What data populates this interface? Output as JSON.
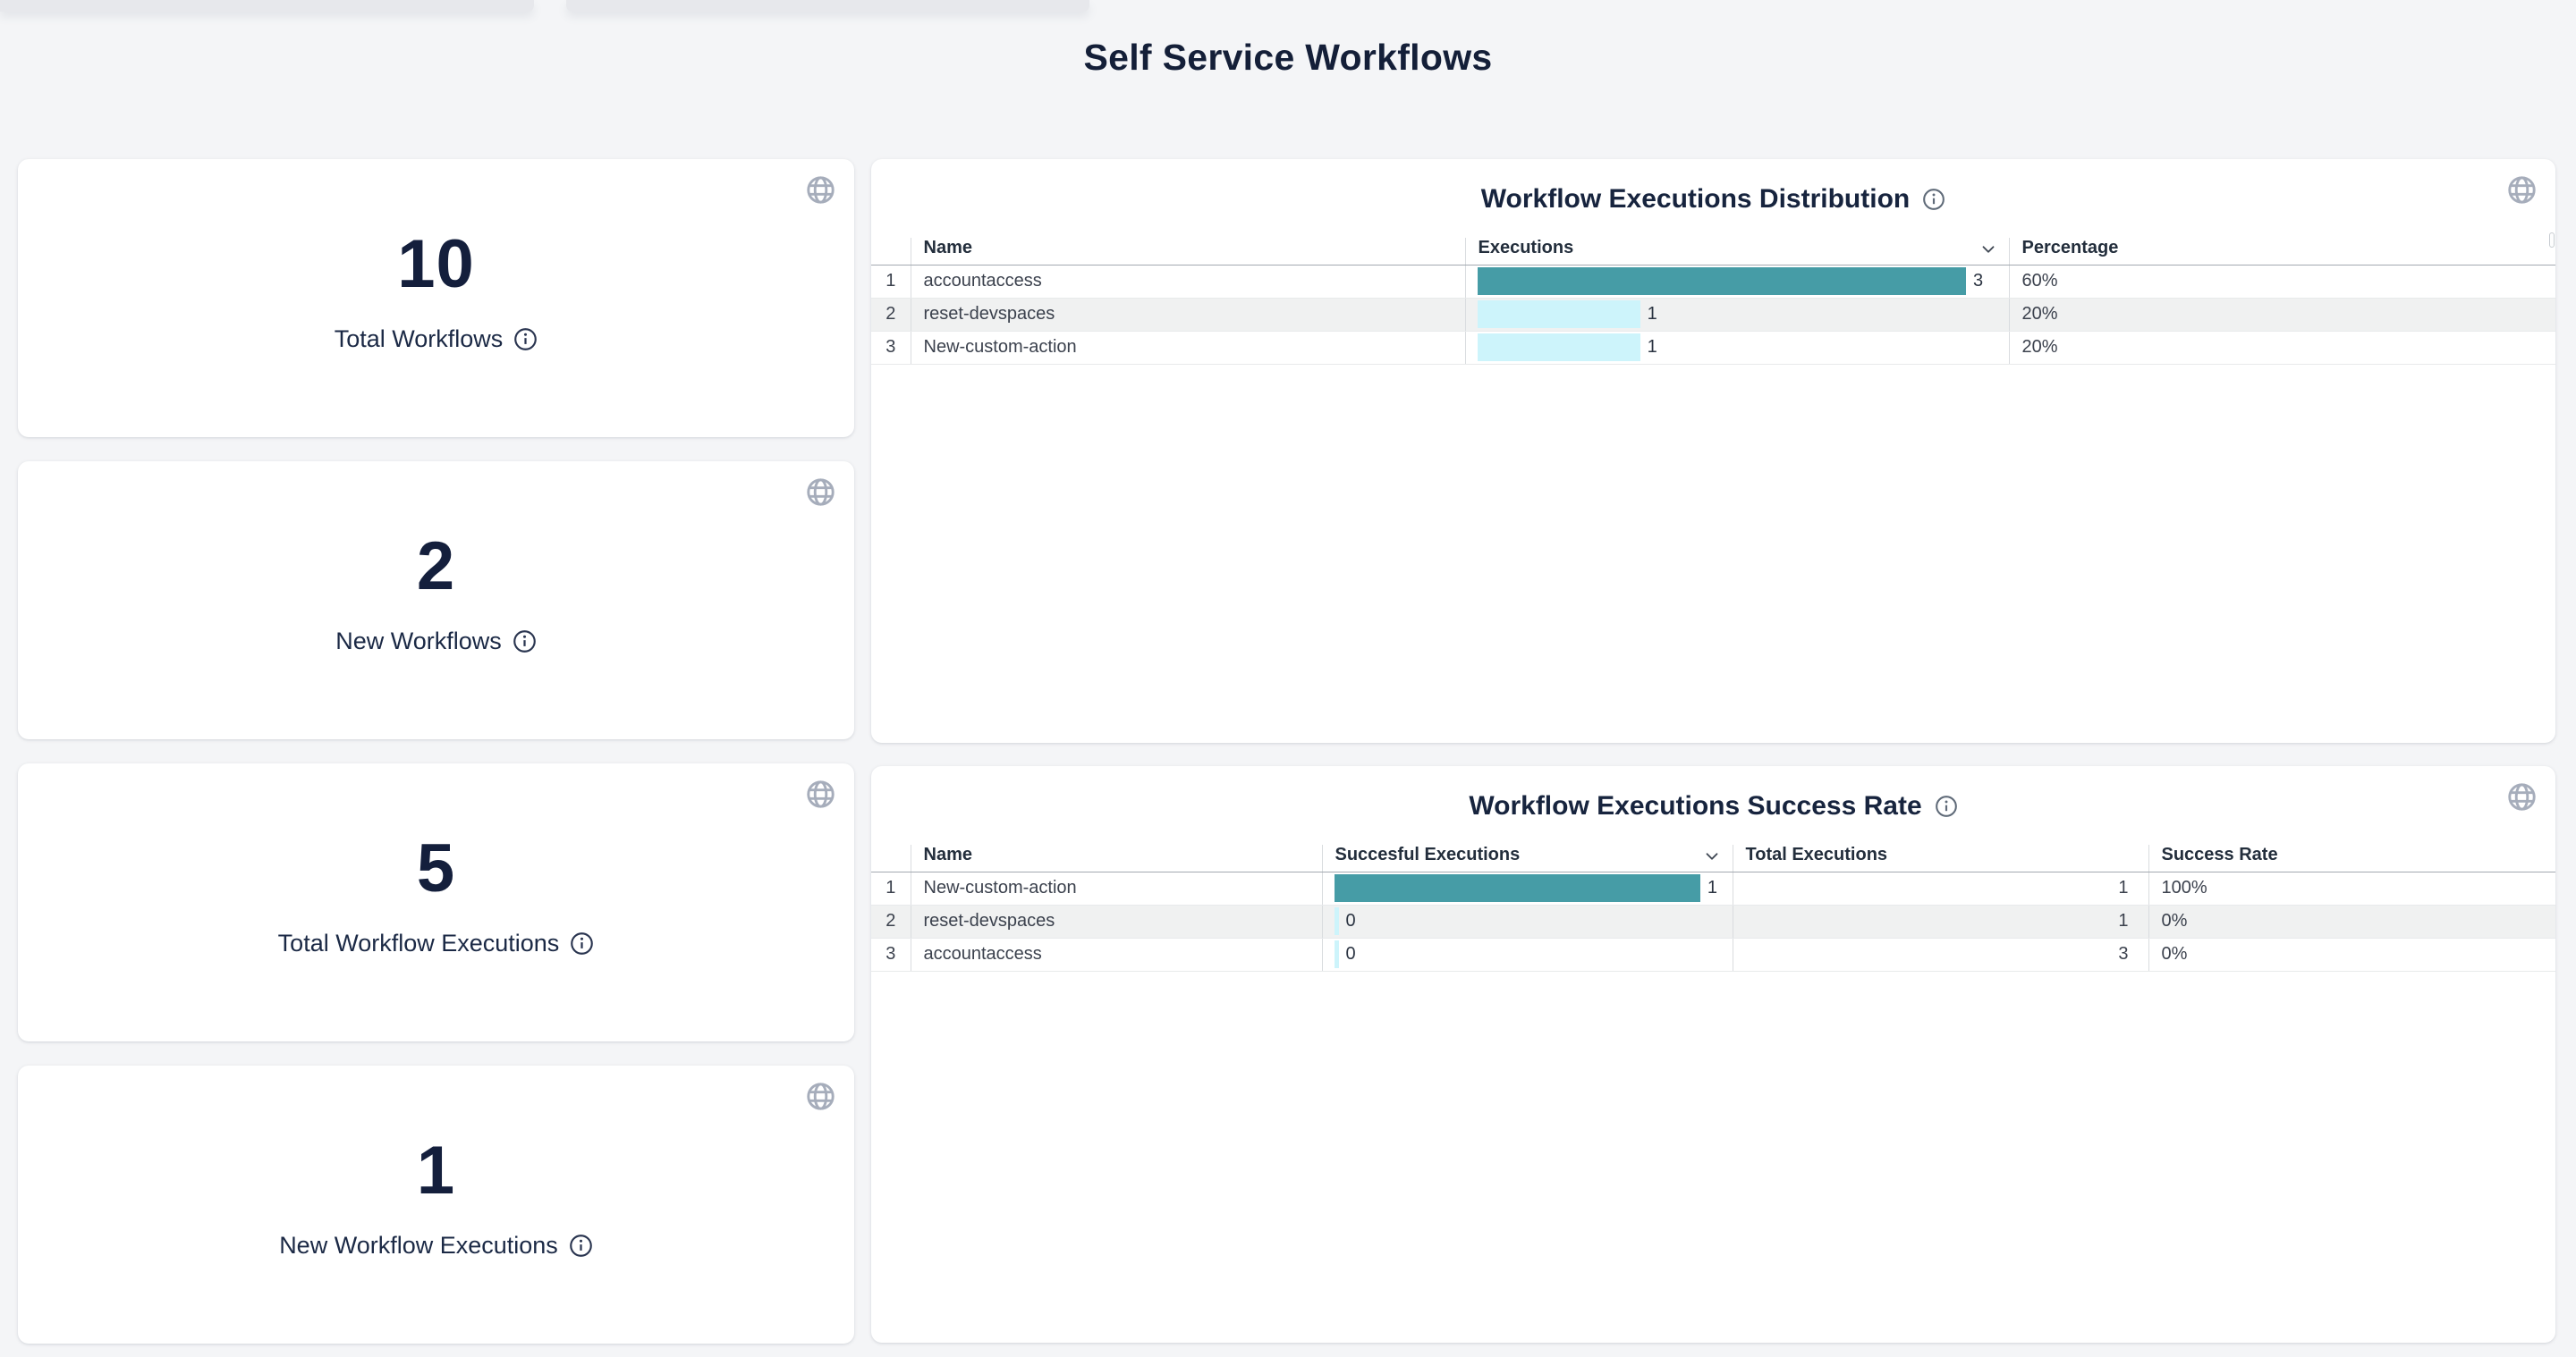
{
  "page": {
    "title": "Self Service Workflows"
  },
  "colors": {
    "bar_max": "#469CA6",
    "bar_other": "#CDF4FB",
    "accent_text": "#141F3C",
    "row_stripe": "#F0F1F1"
  },
  "stat_cards": [
    {
      "value": "10",
      "label": "Total Workflows"
    },
    {
      "value": "2",
      "label": "New Workflows"
    },
    {
      "value": "5",
      "label": "Total Workflow Executions"
    },
    {
      "value": "1",
      "label": "New Workflow Executions"
    }
  ],
  "distribution_table": {
    "title": "Workflow Executions Distribution",
    "columns": [
      "Name",
      "Executions",
      "Percentage"
    ],
    "max_executions": 3,
    "rows": [
      {
        "index": "1",
        "name": "accountaccess",
        "executions": 3,
        "percentage": "60%"
      },
      {
        "index": "2",
        "name": "reset-devspaces",
        "executions": 1,
        "percentage": "20%"
      },
      {
        "index": "3",
        "name": "New-custom-action",
        "executions": 1,
        "percentage": "20%"
      }
    ]
  },
  "success_table": {
    "title": "Workflow Executions Success Rate",
    "columns": [
      "Name",
      "Succesful Executions",
      "Total Executions",
      "Success Rate"
    ],
    "max_successful": 1,
    "rows": [
      {
        "index": "1",
        "name": "New-custom-action",
        "successful": 1,
        "total": "1",
        "rate": "100%"
      },
      {
        "index": "2",
        "name": "reset-devspaces",
        "successful": 0,
        "total": "1",
        "rate": "0%"
      },
      {
        "index": "3",
        "name": "accountaccess",
        "successful": 0,
        "total": "3",
        "rate": "0%"
      }
    ]
  }
}
